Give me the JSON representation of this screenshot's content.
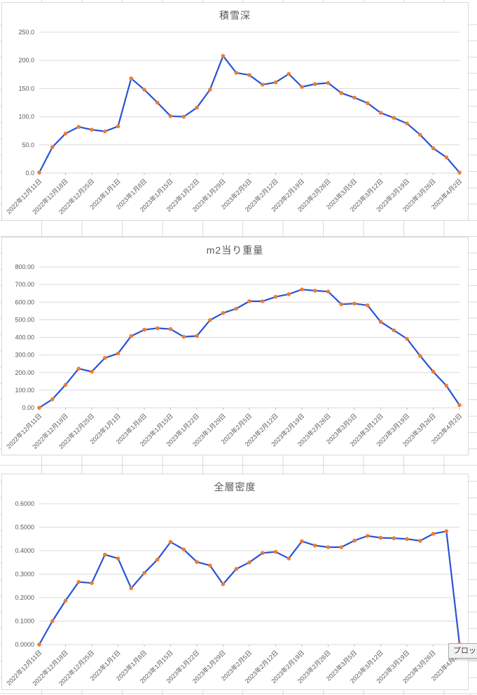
{
  "tooltip": {
    "text": "プロッ"
  },
  "colors": {
    "line": "#2a52d8",
    "marker": "#ed7d31",
    "gridline": "#d9d9d9",
    "axis_tick": "#bfbfbf",
    "axis_text": "#595959",
    "title_text": "#595959",
    "sheet_gridline": "#d9d9d9",
    "chart_border": "#d9d9d9",
    "tooltip_bg": "#f2f2f2",
    "tooltip_border": "#ababab"
  },
  "chart_data": [
    {
      "type": "line",
      "title": "積雪深",
      "categories": [
        "2022年12月11日",
        "2022年12月18日",
        "2022年12月25日",
        "2023年1月1日",
        "2023年1月8日",
        "2023年1月15日",
        "2023年1月22日",
        "2023年1月29日",
        "2023年2月5日",
        "2023年2月12日",
        "2023年2月19日",
        "2023年2月26日",
        "2023年3月5日",
        "2023年3月12日",
        "2023年3月19日",
        "2023年3月26日",
        "2023年4月2日"
      ],
      "x_labels_every_n_points": 2,
      "values": [
        1,
        46,
        70,
        82,
        77,
        74,
        83,
        168,
        148,
        125,
        101,
        100,
        116,
        148,
        208,
        178,
        174,
        157,
        161,
        176,
        153,
        158,
        160,
        142,
        134,
        124,
        107,
        98,
        88,
        68,
        44,
        28,
        1
      ],
      "ylim": [
        0,
        250
      ],
      "y_tick_labels": [
        "0.0",
        "50.0",
        "100.0",
        "150.0",
        "200.0",
        "250.0"
      ],
      "grid": true,
      "legend": "none",
      "line_color": "#2a52d8",
      "marker_color": "#ed7d31"
    },
    {
      "type": "line",
      "title": "m2当り重量",
      "categories": [
        "2022年12月11日",
        "2022年12月18日",
        "2022年12月25日",
        "2023年1月1日",
        "2023年1月8日",
        "2023年1月15日",
        "2023年1月22日",
        "2023年1月29日",
        "2023年2月5日",
        "2023年2月12日",
        "2023年2月19日",
        "2023年2月26日",
        "2023年3月5日",
        "2023年3月12日",
        "2023年3月19日",
        "2023年3月26日",
        "2023年4月2日"
      ],
      "x_labels_every_n_points": 2,
      "values": [
        0,
        48,
        130,
        222,
        205,
        283,
        308,
        407,
        443,
        452,
        447,
        403,
        408,
        498,
        538,
        563,
        605,
        605,
        630,
        645,
        672,
        665,
        660,
        588,
        592,
        582,
        488,
        440,
        392,
        295,
        205,
        125,
        15
      ],
      "ylim": [
        0,
        800
      ],
      "y_tick_labels": [
        "0.00",
        "100.00",
        "200.00",
        "300.00",
        "400.00",
        "500.00",
        "600.00",
        "700.00",
        "800.00"
      ],
      "grid": true,
      "legend": "none",
      "line_color": "#2a52d8",
      "marker_color": "#ed7d31"
    },
    {
      "type": "line",
      "title": "全層密度",
      "categories": [
        "2022年12月11日",
        "2022年12月18日",
        "2022年12月25日",
        "2023年1月1日",
        "2023年1月8日",
        "2023年1月15日",
        "2023年1月22日",
        "2023年1月29日",
        "2023年2月5日",
        "2023年2月12日",
        "2023年2月19日",
        "2023年2月26日",
        "2023年3月5日",
        "2023年3月12日",
        "2023年3月19日",
        "2023年3月26日",
        "2023年4月2日"
      ],
      "x_labels_every_n_points": 2,
      "values": [
        0.0,
        0.1,
        0.187,
        0.267,
        0.262,
        0.383,
        0.367,
        0.24,
        0.305,
        0.362,
        0.437,
        0.405,
        0.352,
        0.337,
        0.257,
        0.322,
        0.35,
        0.39,
        0.395,
        0.367,
        0.44,
        0.422,
        0.415,
        0.415,
        0.443,
        0.463,
        0.455,
        0.453,
        0.45,
        0.442,
        0.472,
        0.483,
        0.003
      ],
      "ylim": [
        0,
        0.6
      ],
      "y_tick_labels": [
        "0.0000",
        "0.1000",
        "0.2000",
        "0.3000",
        "0.4000",
        "0.5000",
        "0.6000"
      ],
      "grid": true,
      "legend": "none",
      "line_color": "#2a52d8",
      "marker_color": "#ed7d31"
    }
  ]
}
